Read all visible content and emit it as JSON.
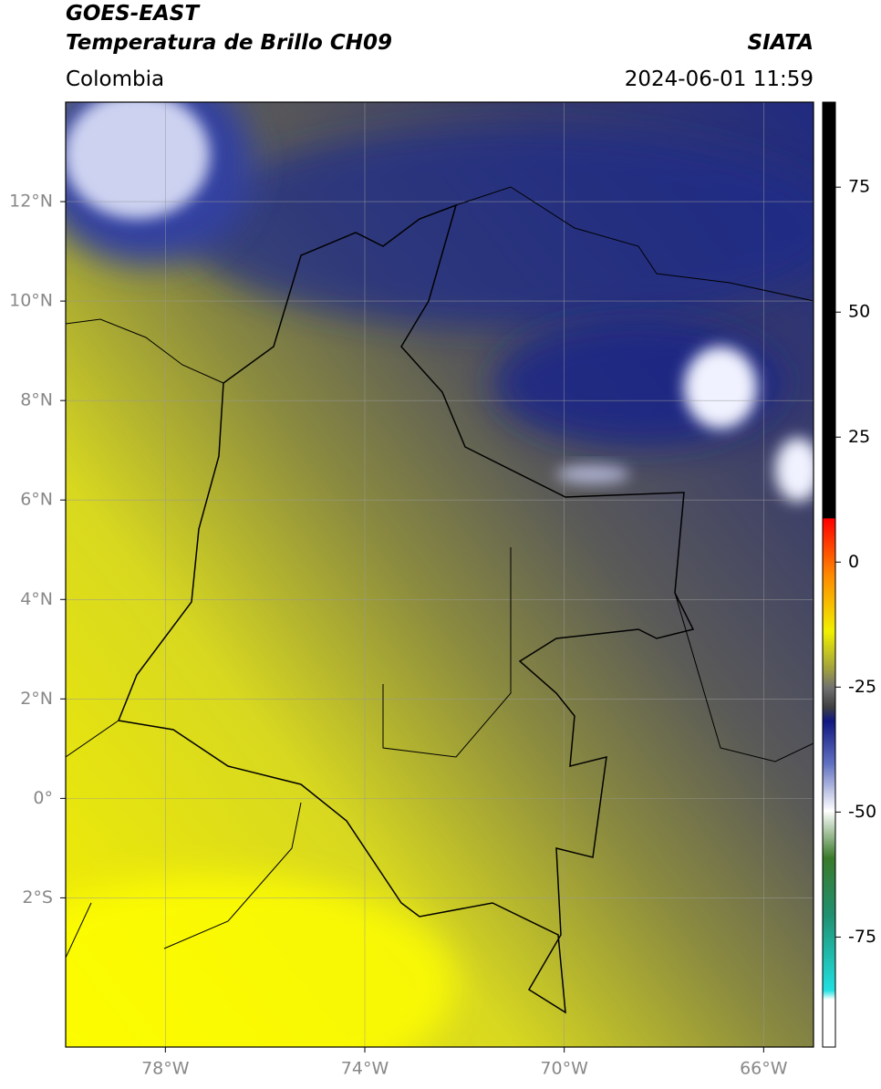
{
  "header": {
    "satellite": "GOES-EAST",
    "product": "Temperatura de Brillo CH09",
    "source": "SIATA",
    "region": "Colombia",
    "datetime": "2024-06-01 11:59"
  },
  "map": {
    "xlim": [
      -80,
      -65
    ],
    "ylim": [
      -5,
      14
    ],
    "xticks": [
      {
        "value": -78,
        "label": "78°W"
      },
      {
        "value": -74,
        "label": "74°W"
      },
      {
        "value": -70,
        "label": "70°W"
      },
      {
        "value": -66,
        "label": "66°W"
      }
    ],
    "yticks": [
      {
        "value": -2,
        "label": "2°S"
      },
      {
        "value": 0,
        "label": "0°"
      },
      {
        "value": 2,
        "label": "2°N"
      },
      {
        "value": 4,
        "label": "4°N"
      },
      {
        "value": 6,
        "label": "6°N"
      },
      {
        "value": 8,
        "label": "8°N"
      },
      {
        "value": 10,
        "label": "10°N"
      },
      {
        "value": 12,
        "label": "12°N"
      }
    ],
    "grid": true
  },
  "colorbar": {
    "lim": [
      -97,
      92
    ],
    "ticks": [
      75,
      50,
      25,
      0,
      -25,
      -50,
      -75
    ]
  }
}
